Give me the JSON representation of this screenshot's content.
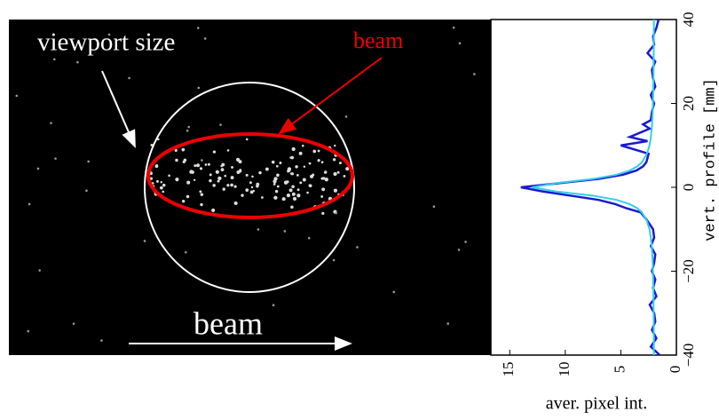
{
  "image": {
    "annotations": {
      "viewport": "viewport size",
      "beam_label": "beam",
      "beam_direction": "beam"
    }
  },
  "chart_data": {
    "type": "line",
    "orientation": "vertical",
    "x_label": "vert. profile [mm]",
    "y_label": "aver. pixel int.",
    "xlim": [
      -40,
      40
    ],
    "xticks": [
      {
        "value": -40,
        "label": "−40"
      },
      {
        "value": -20,
        "label": "−20"
      },
      0,
      20,
      40
    ],
    "ylim": [
      0,
      16.7
    ],
    "yticks": [
      15,
      10,
      5,
      0
    ],
    "x": [
      -40,
      -38,
      -36,
      -34,
      -32,
      -30,
      -28,
      -26,
      -24,
      -22,
      -20,
      -18,
      -16,
      -14,
      -12,
      -10,
      -8,
      -6,
      -5,
      -4,
      -3,
      -2,
      -1,
      0,
      1,
      2,
      3,
      4,
      5,
      6,
      8,
      10,
      11,
      12,
      14,
      15,
      16,
      18,
      20,
      22,
      24,
      26,
      28,
      30,
      32,
      34,
      36,
      38,
      40
    ],
    "series": [
      {
        "color": "#1a1ad0",
        "values": [
          1.5,
          2.3,
          1.8,
          2.2,
          1.9,
          2.0,
          2.4,
          1.8,
          2.1,
          1.9,
          2.2,
          2.0,
          1.9,
          2.3,
          2.0,
          2.1,
          2.6,
          3.2,
          4.5,
          5.5,
          7.0,
          9.5,
          12.0,
          14.0,
          10.5,
          7.0,
          4.8,
          3.6,
          3.0,
          2.7,
          2.5,
          5.0,
          2.6,
          4.2,
          2.4,
          3.0,
          2.3,
          2.2,
          2.0,
          2.3,
          1.9,
          2.1,
          2.2,
          1.9,
          2.6,
          2.0,
          2.1,
          1.8,
          1.6
        ]
      },
      {
        "color": "#33ccee",
        "values": [
          2.03,
          2.03,
          2.03,
          2.04,
          2.04,
          2.05,
          2.06,
          2.06,
          2.08,
          2.09,
          2.11,
          2.13,
          2.17,
          2.22,
          2.3,
          2.42,
          2.65,
          3.1,
          3.52,
          4.2,
          5.38,
          7.5,
          10.8,
          13,
          10.8,
          7.5,
          5.38,
          4.2,
          3.52,
          3.1,
          2.65,
          2.42,
          2.35,
          2.3,
          2.22,
          2.19,
          2.17,
          2.13,
          2.11,
          2.09,
          2.08,
          2.06,
          2.06,
          2.05,
          2.04,
          2.04,
          2.03,
          2.03,
          2.03
        ]
      }
    ]
  }
}
